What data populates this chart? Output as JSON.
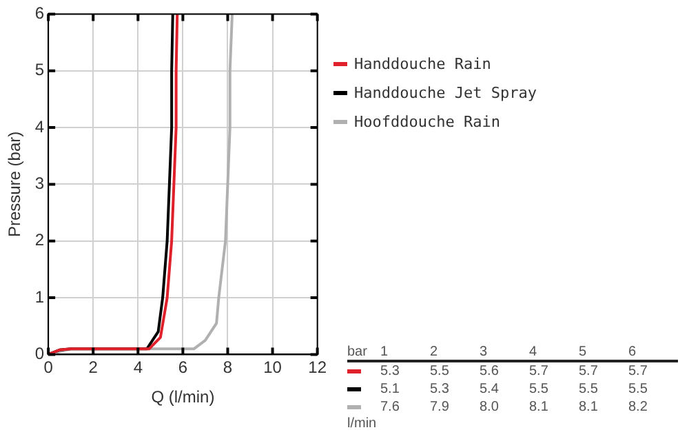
{
  "chart_data": {
    "type": "line",
    "xlabel": "Q (l/min)",
    "ylabel": "Pressure (bar)",
    "xlim": [
      0,
      12
    ],
    "xticks": [
      0,
      2,
      4,
      6,
      8,
      10,
      12
    ],
    "ylim": [
      0,
      6
    ],
    "yticks": [
      0,
      1,
      2,
      3,
      4,
      5,
      6
    ],
    "grid": true,
    "legend": "right",
    "series": [
      {
        "name": "Handdouche Rain",
        "color": "#e0202a",
        "x": [
          0,
          0.5,
          1,
          4.5,
          5.0,
          5.3,
          5.5,
          5.6,
          5.7,
          5.7,
          5.75
        ],
        "values": [
          0,
          0.08,
          0.1,
          0.1,
          0.3,
          1,
          2,
          3,
          4,
          5,
          6
        ]
      },
      {
        "name": "Handdouche Jet Spray",
        "color": "#000000",
        "x": [
          0,
          0.5,
          1,
          4.4,
          4.9,
          5.1,
          5.3,
          5.4,
          5.5,
          5.5,
          5.55
        ],
        "values": [
          0,
          0.08,
          0.1,
          0.1,
          0.4,
          1,
          2,
          3,
          4,
          5,
          6
        ]
      },
      {
        "name": "Hoofddouche Rain",
        "color": "#b0b0b0",
        "x": [
          0,
          1,
          6.5,
          7.0,
          7.5,
          7.6,
          7.9,
          8.0,
          8.1,
          8.1,
          8.2
        ],
        "values": [
          0,
          0.1,
          0.1,
          0.25,
          0.55,
          1,
          2,
          3,
          4,
          5,
          6
        ]
      }
    ],
    "annotations": [
      "bar",
      "1",
      "2",
      "3",
      "4",
      "5",
      "6",
      "5.3",
      "5.5",
      "5.6",
      "5.7",
      "5.7",
      "5.7",
      "5.1",
      "5.3",
      "5.4",
      "5.5",
      "5.5",
      "5.5",
      "7.6",
      "7.9",
      "8.0",
      "8.1",
      "8.1",
      "8.2",
      "l/min"
    ]
  }
}
